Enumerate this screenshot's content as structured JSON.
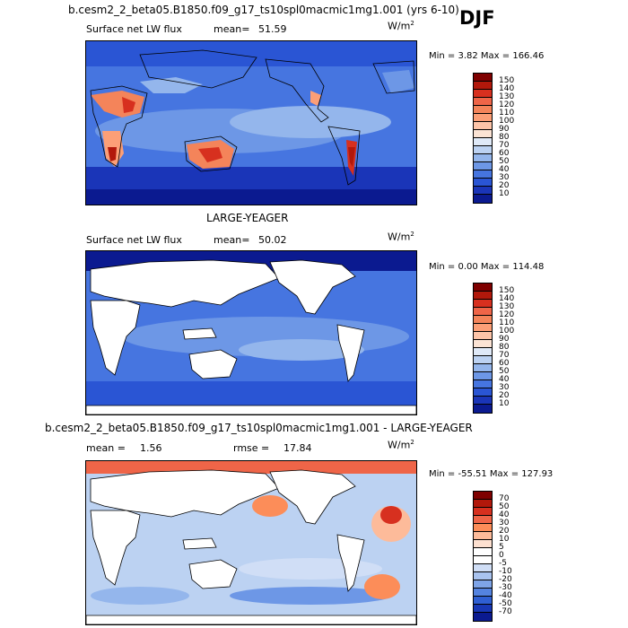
{
  "season": "DJF",
  "panels": [
    {
      "id": "test",
      "case_title": "b.cesm2_2_beta05.B1850.f09_g17_ts10spl0macmic1mg1.001 (yrs 6-10)",
      "variable": "Surface net LW flux",
      "stat1_label": "mean=",
      "stat1_value": "51.59",
      "stat2_label": "",
      "stat2_value": "",
      "units": "W/m",
      "units_sup": "2",
      "minmax": "Min =   3.82 Max = 166.46",
      "colorbar_labels": [
        "150",
        "140",
        "130",
        "120",
        "110",
        "100",
        "90",
        "80",
        "70",
        "60",
        "50",
        "40",
        "30",
        "20",
        "10"
      ]
    },
    {
      "id": "obs",
      "case_title": "LARGE-YEAGER",
      "variable": "Surface net LW flux",
      "stat1_label": "mean=",
      "stat1_value": "50.02",
      "stat2_label": "",
      "stat2_value": "",
      "units": "W/m",
      "units_sup": "2",
      "minmax": "Min =   0.00 Max = 114.48",
      "colorbar_labels": [
        "150",
        "140",
        "130",
        "120",
        "110",
        "100",
        "90",
        "80",
        "70",
        "60",
        "50",
        "40",
        "30",
        "20",
        "10"
      ]
    },
    {
      "id": "diff",
      "case_title": "b.cesm2_2_beta05.B1850.f09_g17_ts10spl0macmic1mg1.001 - LARGE-YEAGER",
      "variable": "",
      "stat1_label": "mean =",
      "stat1_value": "1.56",
      "stat2_label": "rmse =",
      "stat2_value": "17.84",
      "units": "W/m",
      "units_sup": "2",
      "minmax": "Min = -55.51 Max = 127.93",
      "colorbar_labels": [
        "70",
        "50",
        "40",
        "30",
        "20",
        "10",
        "5",
        "0",
        "-5",
        "-10",
        "-20",
        "-30",
        "-40",
        "-50",
        "-70"
      ]
    }
  ],
  "colors": {
    "abs_scale": [
      "#7f0000",
      "#b2180b",
      "#d7301f",
      "#ef6548",
      "#f4845a",
      "#fc9f77",
      "#fdc4a8",
      "#fbe3d4",
      "#dfe9f7",
      "#bcd2f2",
      "#94b6ec",
      "#6d97e6",
      "#4675e0",
      "#2a55d4",
      "#1a35b8",
      "#0b1a90"
    ],
    "diff_scale": [
      "#7f0000",
      "#b2180b",
      "#d7301f",
      "#ef6548",
      "#fc8d59",
      "#fdbb9a",
      "#fde0d0",
      "#ffffff",
      "#ffffff",
      "#d0def6",
      "#a9c3ef",
      "#7ea4e8",
      "#5483e0",
      "#2f5fd3",
      "#1837b5",
      "#0b1a90"
    ],
    "land": "#ffffff",
    "coast": "#000000"
  },
  "chart_data": [
    {
      "type": "heatmap",
      "title": "b.cesm2_2_beta05.B1850.f09_g17_ts10spl0macmic1mg1.001 (yrs 6-10)",
      "variable": "Surface net LW flux",
      "units": "W/m2",
      "mean": 51.59,
      "min": 3.82,
      "max": 166.46,
      "contour_levels": [
        10,
        20,
        30,
        40,
        50,
        60,
        70,
        80,
        90,
        100,
        110,
        120,
        130,
        140,
        150
      ]
    },
    {
      "type": "heatmap",
      "title": "LARGE-YEAGER",
      "variable": "Surface net LW flux",
      "units": "W/m2",
      "mean": 50.02,
      "min": 0.0,
      "max": 114.48,
      "contour_levels": [
        10,
        20,
        30,
        40,
        50,
        60,
        70,
        80,
        90,
        100,
        110,
        120,
        130,
        140,
        150
      ]
    },
    {
      "type": "heatmap",
      "title": "b.cesm2_2_beta05.B1850.f09_g17_ts10spl0macmic1mg1.001 - LARGE-YEAGER",
      "units": "W/m2",
      "mean": 1.56,
      "rmse": 17.84,
      "min": -55.51,
      "max": 127.93,
      "contour_levels": [
        -70,
        -50,
        -40,
        -30,
        -20,
        -10,
        -5,
        0,
        5,
        10,
        20,
        30,
        40,
        50,
        70
      ]
    }
  ]
}
